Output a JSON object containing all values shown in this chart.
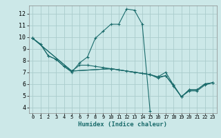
{
  "xlabel": "Humidex (Indice chaleur)",
  "bg_color": "#cce8e8",
  "grid_color": "#aacccc",
  "line_color": "#1a6b6b",
  "xlim": [
    -0.5,
    23.5
  ],
  "ylim": [
    3.5,
    12.7
  ],
  "xticks": [
    0,
    1,
    2,
    3,
    4,
    5,
    6,
    7,
    8,
    9,
    10,
    11,
    12,
    13,
    14,
    15,
    16,
    17,
    18,
    19,
    20,
    21,
    22,
    23
  ],
  "yticks": [
    4,
    5,
    6,
    7,
    8,
    9,
    10,
    11,
    12
  ],
  "line1_x": [
    0,
    1,
    2,
    3,
    4,
    5,
    6,
    7,
    8,
    9,
    10,
    11,
    12,
    13,
    14,
    15
  ],
  "line1_y": [
    9.9,
    9.4,
    8.4,
    8.1,
    7.5,
    7.0,
    7.8,
    8.3,
    9.9,
    10.5,
    11.1,
    11.1,
    12.4,
    12.3,
    11.1,
    3.7
  ],
  "line2_x": [
    0,
    1,
    2,
    3,
    4,
    5,
    6,
    7,
    8,
    9,
    10,
    11,
    12,
    13,
    14,
    15,
    16,
    17,
    18,
    19,
    20,
    21,
    22,
    23
  ],
  "line2_y": [
    9.9,
    9.4,
    8.4,
    8.1,
    7.5,
    7.1,
    7.6,
    7.6,
    7.5,
    7.4,
    7.3,
    7.2,
    7.1,
    7.0,
    6.9,
    6.8,
    6.6,
    6.7,
    5.9,
    4.9,
    5.5,
    5.5,
    6.0,
    6.1
  ],
  "line3_x": [
    0,
    5,
    10,
    15,
    16,
    17,
    18,
    19,
    20,
    21,
    22,
    23
  ],
  "line3_y": [
    9.9,
    7.1,
    7.3,
    6.8,
    6.6,
    7.0,
    5.9,
    4.9,
    5.5,
    5.5,
    6.0,
    6.1
  ],
  "line4_x": [
    0,
    5,
    10,
    15,
    16,
    17,
    18,
    19,
    20,
    21,
    22,
    23
  ],
  "line4_y": [
    9.9,
    7.1,
    7.3,
    6.8,
    6.5,
    6.7,
    5.8,
    4.9,
    5.4,
    5.4,
    5.9,
    6.1
  ]
}
